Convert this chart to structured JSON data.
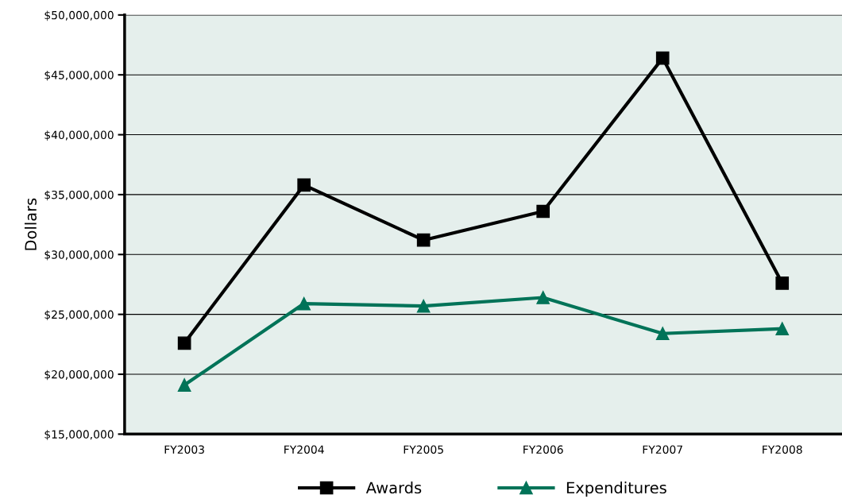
{
  "chart_data": {
    "type": "line",
    "ylabel": "Dollars",
    "categories": [
      "FY2003",
      "FY2004",
      "FY2005",
      "FY2006",
      "FY2007",
      "FY2008"
    ],
    "series": [
      {
        "name": "Awards",
        "color": "#000000",
        "marker": "square",
        "values": [
          22600000,
          35800000,
          31200000,
          33600000,
          46400000,
          27600000
        ]
      },
      {
        "name": "Expenditures",
        "color": "#007358",
        "marker": "triangle",
        "values": [
          19100000,
          25900000,
          25700000,
          26400000,
          23400000,
          23800000
        ]
      }
    ],
    "ylim": [
      15000000,
      50000000
    ],
    "yticks": [
      {
        "value": 15000000,
        "label": "$15,000,000"
      },
      {
        "value": 20000000,
        "label": "$20,000,000"
      },
      {
        "value": 25000000,
        "label": "$25,000,000"
      },
      {
        "value": 30000000,
        "label": "$30,000,000"
      },
      {
        "value": 35000000,
        "label": "$35,000,000"
      },
      {
        "value": 40000000,
        "label": "$40,000,000"
      },
      {
        "value": 45000000,
        "label": "$45,000,000"
      },
      {
        "value": 50000000,
        "label": "$50,000,000"
      }
    ],
    "grid": "y",
    "legend": "bottom",
    "line_style": "solid"
  }
}
